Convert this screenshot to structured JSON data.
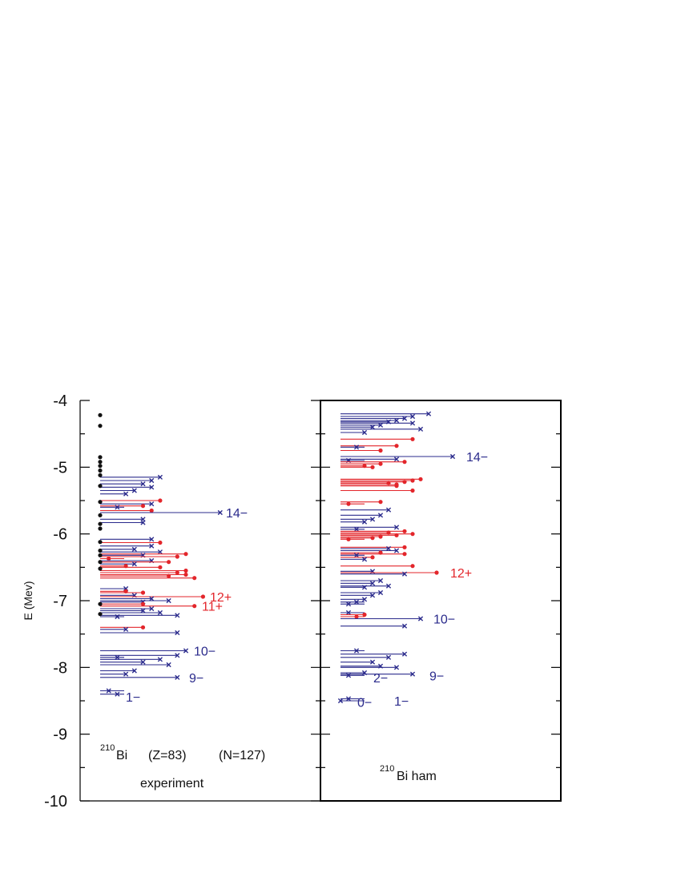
{
  "chart_data": {
    "type": "scatter",
    "ylabel": "E (Mev)",
    "ylim": [
      -10,
      -4
    ],
    "yticks": [
      -4,
      -5,
      -6,
      -7,
      -8,
      -9,
      -10
    ],
    "colors": {
      "negative_parity": "#2b2b8c",
      "positive_parity": "#e3262b",
      "unassigned": "#111111",
      "frame": "#000000"
    },
    "panels": [
      {
        "name": "experiment",
        "caption": "experiment",
        "label_sup": "210",
        "label_main": "Bi",
        "label_z": "(Z=83)",
        "label_n": "(N=127)",
        "annotations": [
          {
            "text": "14−",
            "E": -5.68,
            "color": "negative"
          },
          {
            "text": "12+",
            "E": -6.94,
            "color": "positive"
          },
          {
            "text": "11+",
            "E": -7.08,
            "color": "positive"
          },
          {
            "text": "10−",
            "E": -7.75,
            "color": "negative"
          },
          {
            "text": "9−",
            "E": -8.15,
            "color": "negative"
          },
          {
            "text": "1−",
            "E": -8.44,
            "color": "negative"
          }
        ],
        "dots": [
          -4.22,
          -4.38,
          -4.85,
          -4.92,
          -4.98,
          -5.05,
          -5.12,
          -5.28,
          -5.52,
          -5.72,
          -5.85,
          -5.92,
          -6.12,
          -6.25,
          -6.32,
          -6.42,
          -6.52,
          -7.05,
          -7.2
        ],
        "levels": [
          {
            "E": -5.15,
            "J": 7,
            "p": "-"
          },
          {
            "E": -5.2,
            "J": 6,
            "p": "-"
          },
          {
            "E": -5.25,
            "J": 5,
            "p": "-"
          },
          {
            "E": -5.3,
            "J": 6,
            "p": "-"
          },
          {
            "E": -5.35,
            "J": 4,
            "p": "-"
          },
          {
            "E": -5.4,
            "J": 3,
            "p": "-"
          },
          {
            "E": -5.5,
            "J": 7,
            "p": "+"
          },
          {
            "E": -5.55,
            "J": 6,
            "p": "-"
          },
          {
            "E": -5.58,
            "J": 5,
            "p": "+"
          },
          {
            "E": -5.6,
            "J": 2,
            "p": "-"
          },
          {
            "E": -5.65,
            "J": 6,
            "p": "+"
          },
          {
            "E": -5.68,
            "J": 14,
            "p": "-"
          },
          {
            "E": -5.78,
            "J": 5,
            "p": "-"
          },
          {
            "E": -5.83,
            "J": 5,
            "p": "-"
          },
          {
            "E": -6.08,
            "J": 6,
            "p": "-"
          },
          {
            "E": -6.13,
            "J": 7,
            "p": "+"
          },
          {
            "E": -6.18,
            "J": 6,
            "p": "-"
          },
          {
            "E": -6.23,
            "J": 4,
            "p": "-"
          },
          {
            "E": -6.27,
            "J": 7,
            "p": "-"
          },
          {
            "E": -6.3,
            "J": 10,
            "p": "+"
          },
          {
            "E": -6.32,
            "J": 5,
            "p": "-"
          },
          {
            "E": -6.34,
            "J": 9,
            "p": "+"
          },
          {
            "E": -6.37,
            "J": 1,
            "p": "+"
          },
          {
            "E": -6.4,
            "J": 6,
            "p": "-"
          },
          {
            "E": -6.42,
            "J": 8,
            "p": "+"
          },
          {
            "E": -6.45,
            "J": 4,
            "p": "-"
          },
          {
            "E": -6.48,
            "J": 3,
            "p": "+"
          },
          {
            "E": -6.5,
            "J": 7,
            "p": "+"
          },
          {
            "E": -6.55,
            "J": 10,
            "p": "+"
          },
          {
            "E": -6.58,
            "J": 9,
            "p": "+"
          },
          {
            "E": -6.61,
            "J": 10,
            "p": "+"
          },
          {
            "E": -6.63,
            "J": 8,
            "p": "+"
          },
          {
            "E": -6.66,
            "J": 11,
            "p": "+"
          },
          {
            "E": -6.82,
            "J": 3,
            "p": "-"
          },
          {
            "E": -6.86,
            "J": 3,
            "p": "+"
          },
          {
            "E": -6.88,
            "J": 5,
            "p": "+"
          },
          {
            "E": -6.92,
            "J": 4,
            "p": "-"
          },
          {
            "E": -6.94,
            "J": 12,
            "p": "+"
          },
          {
            "E": -6.97,
            "J": 6,
            "p": "-"
          },
          {
            "E": -7.0,
            "J": 8,
            "p": "-"
          },
          {
            "E": -7.02,
            "J": 5,
            "p": "-"
          },
          {
            "E": -7.05,
            "J": 5,
            "p": "+"
          },
          {
            "E": -7.08,
            "J": 11,
            "p": "+"
          },
          {
            "E": -7.12,
            "J": 6,
            "p": "-"
          },
          {
            "E": -7.15,
            "J": 5,
            "p": "-"
          },
          {
            "E": -7.18,
            "J": 7,
            "p": "-"
          },
          {
            "E": -7.22,
            "J": 9,
            "p": "-"
          },
          {
            "E": -7.24,
            "J": 2,
            "p": "-"
          },
          {
            "E": -7.4,
            "J": 5,
            "p": "+"
          },
          {
            "E": -7.43,
            "J": 3,
            "p": "-"
          },
          {
            "E": -7.48,
            "J": 9,
            "p": "-"
          },
          {
            "E": -7.75,
            "J": 10,
            "p": "-"
          },
          {
            "E": -7.82,
            "J": 9,
            "p": "-"
          },
          {
            "E": -7.85,
            "J": 2,
            "p": "-"
          },
          {
            "E": -7.88,
            "J": 7,
            "p": "-"
          },
          {
            "E": -7.92,
            "J": 5,
            "p": "-"
          },
          {
            "E": -7.96,
            "J": 8,
            "p": "-"
          },
          {
            "E": -8.05,
            "J": 4,
            "p": "-"
          },
          {
            "E": -8.1,
            "J": 3,
            "p": "-"
          },
          {
            "E": -8.15,
            "J": 9,
            "p": "-"
          },
          {
            "E": -8.35,
            "J": 1,
            "p": "-"
          },
          {
            "E": -8.4,
            "J": 2,
            "p": "-"
          }
        ]
      },
      {
        "name": "ham",
        "caption": "",
        "label_sup": "210",
        "label_main": "Bi  ham",
        "label_z": "",
        "label_n": "",
        "annotations": [
          {
            "text": "14−",
            "E": -4.84,
            "color": "negative"
          },
          {
            "text": "12+",
            "E": -6.58,
            "color": "positive"
          },
          {
            "text": "10−",
            "E": -7.27,
            "color": "negative"
          },
          {
            "text": "2−",
            "E": -8.15,
            "color": "negative"
          },
          {
            "text": "9−",
            "E": -8.12,
            "color": "negative"
          },
          {
            "text": "0−",
            "E": -8.52,
            "color": "negative"
          },
          {
            "text": "1−",
            "E": -8.5,
            "color": "negative"
          }
        ],
        "dots": [],
        "levels": [
          {
            "E": -4.2,
            "J": 11,
            "p": "-"
          },
          {
            "E": -4.24,
            "J": 9,
            "p": "-"
          },
          {
            "E": -4.27,
            "J": 8,
            "p": "-"
          },
          {
            "E": -4.3,
            "J": 7,
            "p": "-"
          },
          {
            "E": -4.32,
            "J": 6,
            "p": "-"
          },
          {
            "E": -4.34,
            "J": 9,
            "p": "-"
          },
          {
            "E": -4.37,
            "J": 5,
            "p": "-"
          },
          {
            "E": -4.4,
            "J": 4,
            "p": "-"
          },
          {
            "E": -4.43,
            "J": 10,
            "p": "-"
          },
          {
            "E": -4.48,
            "J": 3,
            "p": "-"
          },
          {
            "E": -4.58,
            "J": 9,
            "p": "+"
          },
          {
            "E": -4.68,
            "J": 7,
            "p": "+"
          },
          {
            "E": -4.7,
            "J": 2,
            "p": "-"
          },
          {
            "E": -4.75,
            "J": 5,
            "p": "+"
          },
          {
            "E": -4.84,
            "J": 14,
            "p": "-"
          },
          {
            "E": -4.88,
            "J": 7,
            "p": "-"
          },
          {
            "E": -4.9,
            "J": 1,
            "p": "-"
          },
          {
            "E": -4.92,
            "J": 8,
            "p": "+"
          },
          {
            "E": -4.95,
            "J": 5,
            "p": "+"
          },
          {
            "E": -4.98,
            "J": 3,
            "p": "+"
          },
          {
            "E": -5.0,
            "J": 4,
            "p": "+"
          },
          {
            "E": -5.18,
            "J": 10,
            "p": "+"
          },
          {
            "E": -5.2,
            "J": 9,
            "p": "+"
          },
          {
            "E": -5.22,
            "J": 8,
            "p": "+"
          },
          {
            "E": -5.24,
            "J": 6,
            "p": "+"
          },
          {
            "E": -5.26,
            "J": 7,
            "p": "+"
          },
          {
            "E": -5.28,
            "J": 7,
            "p": "+"
          },
          {
            "E": -5.35,
            "J": 9,
            "p": "+"
          },
          {
            "E": -5.52,
            "J": 5,
            "p": "+"
          },
          {
            "E": -5.55,
            "J": 1,
            "p": "+"
          },
          {
            "E": -5.64,
            "J": 6,
            "p": "-"
          },
          {
            "E": -5.72,
            "J": 5,
            "p": "-"
          },
          {
            "E": -5.78,
            "J": 4,
            "p": "-"
          },
          {
            "E": -5.82,
            "J": 3,
            "p": "-"
          },
          {
            "E": -5.9,
            "J": 7,
            "p": "-"
          },
          {
            "E": -5.93,
            "J": 2,
            "p": "-"
          },
          {
            "E": -5.96,
            "J": 8,
            "p": "+"
          },
          {
            "E": -5.98,
            "J": 6,
            "p": "+"
          },
          {
            "E": -6.0,
            "J": 9,
            "p": "+"
          },
          {
            "E": -6.02,
            "J": 7,
            "p": "+"
          },
          {
            "E": -6.04,
            "J": 5,
            "p": "+"
          },
          {
            "E": -6.06,
            "J": 4,
            "p": "+"
          },
          {
            "E": -6.08,
            "J": 1,
            "p": "+"
          },
          {
            "E": -6.2,
            "J": 8,
            "p": "+"
          },
          {
            "E": -6.22,
            "J": 6,
            "p": "-"
          },
          {
            "E": -6.25,
            "J": 7,
            "p": "-"
          },
          {
            "E": -6.28,
            "J": 5,
            "p": "+"
          },
          {
            "E": -6.3,
            "J": 8,
            "p": "+"
          },
          {
            "E": -6.32,
            "J": 2,
            "p": "-"
          },
          {
            "E": -6.35,
            "J": 4,
            "p": "+"
          },
          {
            "E": -6.38,
            "J": 3,
            "p": "-"
          },
          {
            "E": -6.48,
            "J": 9,
            "p": "+"
          },
          {
            "E": -6.56,
            "J": 4,
            "p": "-"
          },
          {
            "E": -6.58,
            "J": 12,
            "p": "+"
          },
          {
            "E": -6.6,
            "J": 8,
            "p": "-"
          },
          {
            "E": -6.7,
            "J": 5,
            "p": "-"
          },
          {
            "E": -6.74,
            "J": 4,
            "p": "-"
          },
          {
            "E": -6.78,
            "J": 6,
            "p": "-"
          },
          {
            "E": -6.8,
            "J": 3,
            "p": "-"
          },
          {
            "E": -6.88,
            "J": 5,
            "p": "-"
          },
          {
            "E": -6.92,
            "J": 4,
            "p": "-"
          },
          {
            "E": -6.98,
            "J": 3,
            "p": "-"
          },
          {
            "E": -7.02,
            "J": 2,
            "p": "-"
          },
          {
            "E": -7.05,
            "J": 1,
            "p": "-"
          },
          {
            "E": -7.18,
            "J": 1,
            "p": "-"
          },
          {
            "E": -7.21,
            "J": 3,
            "p": "+"
          },
          {
            "E": -7.24,
            "J": 2,
            "p": "+"
          },
          {
            "E": -7.27,
            "J": 10,
            "p": "-"
          },
          {
            "E": -7.38,
            "J": 8,
            "p": "-"
          },
          {
            "E": -7.75,
            "J": 2,
            "p": "-"
          },
          {
            "E": -7.8,
            "J": 8,
            "p": "-"
          },
          {
            "E": -7.85,
            "J": 6,
            "p": "-"
          },
          {
            "E": -7.92,
            "J": 4,
            "p": "-"
          },
          {
            "E": -7.98,
            "J": 5,
            "p": "-"
          },
          {
            "E": -8.0,
            "J": 7,
            "p": "-"
          },
          {
            "E": -8.08,
            "J": 3,
            "p": "-"
          },
          {
            "E": -8.1,
            "J": 9,
            "p": "-"
          },
          {
            "E": -8.12,
            "J": 1,
            "p": "-"
          },
          {
            "E": -8.47,
            "J": 1,
            "p": "-"
          },
          {
            "E": -8.5,
            "J": 0,
            "p": "-"
          }
        ]
      }
    ]
  }
}
